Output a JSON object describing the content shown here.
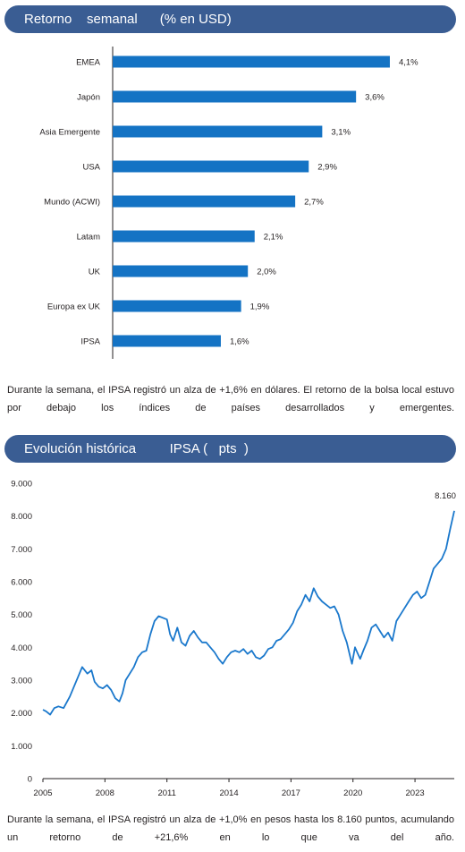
{
  "banner1": {
    "title": "Retorno    semanal      (% en USD)"
  },
  "para1": {
    "text": "Durante la semana, el IPSA registró un alza de +1,6% en dólares. El retorno de la bolsa local estuvo por debajo los índices de países desarrollados y emergentes."
  },
  "banner2": {
    "title": "Evolución histórica         IPSA (   pts  )"
  },
  "para2": {
    "text": "Durante la semana, el IPSA registró un alza de +1,0% en pesos hasta los 8.160 puntos, acumulando un retorno de +21,6% en lo que va del año."
  },
  "colors": {
    "banner": "#3a5d93",
    "bar": "#1473c4",
    "line": "#1a78cc"
  },
  "chart_data": [
    {
      "type": "bar",
      "orientation": "horizontal",
      "categories": [
        "EMEA",
        "Japón",
        "Asia Emergente",
        "USA",
        "Mundo (ACWI)",
        "Latam",
        "UK",
        "Europa ex UK",
        "IPSA"
      ],
      "values": [
        4.1,
        3.6,
        3.1,
        2.9,
        2.7,
        2.1,
        2.0,
        1.9,
        1.6
      ],
      "value_labels": [
        "4,1%",
        "3,6%",
        "3,1%",
        "2,9%",
        "2,7%",
        "2,1%",
        "2,0%",
        "1,9%",
        "1,6%"
      ],
      "title": "Retorno semanal (% en USD)"
    },
    {
      "type": "line",
      "title": "Evolución histórica IPSA (pts)",
      "x_ticks": [
        "2005",
        "2008",
        "2011",
        "2014",
        "2017",
        "2020",
        "2023"
      ],
      "y_ticks": [
        "0",
        "1.000",
        "2.000",
        "3.000",
        "4.000",
        "5.000",
        "6.000",
        "7.000",
        "8.000",
        "9.000"
      ],
      "ylim": [
        0,
        9000
      ],
      "xlim": [
        2005.0,
        2024.9
      ],
      "end_label": "8.160",
      "series": [
        {
          "x": [
            2005.0,
            2005.15,
            2005.35,
            2005.55,
            2005.75,
            2006.0,
            2006.3,
            2006.6,
            2006.9,
            2007.15,
            2007.35,
            2007.5,
            2007.7,
            2007.9,
            2008.1,
            2008.3,
            2008.5,
            2008.7,
            2008.85,
            2009.0,
            2009.2,
            2009.4,
            2009.6,
            2009.8,
            2010.0,
            2010.2,
            2010.4,
            2010.6,
            2010.8,
            2011.0,
            2011.15,
            2011.3,
            2011.5,
            2011.7,
            2011.9,
            2012.1,
            2012.3,
            2012.5,
            2012.7,
            2012.9,
            2013.1,
            2013.3,
            2013.5,
            2013.7,
            2013.9,
            2014.1,
            2014.3,
            2014.5,
            2014.7,
            2014.9,
            2015.1,
            2015.3,
            2015.5,
            2015.7,
            2015.9,
            2016.1,
            2016.3,
            2016.5,
            2016.7,
            2016.9,
            2017.1,
            2017.3,
            2017.5,
            2017.7,
            2017.9,
            2018.1,
            2018.3,
            2018.5,
            2018.7,
            2018.9,
            2019.1,
            2019.3,
            2019.5,
            2019.7,
            2019.85,
            2019.95,
            2020.1,
            2020.2,
            2020.35,
            2020.5,
            2020.7,
            2020.9,
            2021.1,
            2021.3,
            2021.5,
            2021.7,
            2021.9,
            2022.1,
            2022.3,
            2022.5,
            2022.7,
            2022.9,
            2023.1,
            2023.3,
            2023.5,
            2023.7,
            2023.9,
            2024.1,
            2024.3,
            2024.5,
            2024.7,
            2024.9
          ],
          "y": [
            2100,
            2050,
            1950,
            2150,
            2200,
            2150,
            2500,
            2950,
            3400,
            3200,
            3300,
            2950,
            2800,
            2750,
            2850,
            2700,
            2450,
            2350,
            2600,
            3000,
            3200,
            3400,
            3700,
            3850,
            3900,
            4400,
            4800,
            4950,
            4900,
            4850,
            4400,
            4200,
            4600,
            4150,
            4050,
            4350,
            4500,
            4300,
            4150,
            4150,
            4000,
            3850,
            3650,
            3500,
            3700,
            3850,
            3900,
            3850,
            3950,
            3800,
            3900,
            3700,
            3650,
            3750,
            3950,
            4000,
            4200,
            4250,
            4400,
            4550,
            4750,
            5100,
            5300,
            5600,
            5400,
            5800,
            5550,
            5400,
            5300,
            5200,
            5250,
            5000,
            4500,
            4150,
            3750,
            3500,
            4000,
            3850,
            3650,
            3900,
            4200,
            4600,
            4700,
            4500,
            4300,
            4450,
            4200,
            4800,
            5000,
            5200,
            5400,
            5600,
            5700,
            5500,
            5600,
            6000,
            6400,
            6550,
            6700,
            7000,
            7600,
            8160
          ]
        }
      ]
    }
  ]
}
